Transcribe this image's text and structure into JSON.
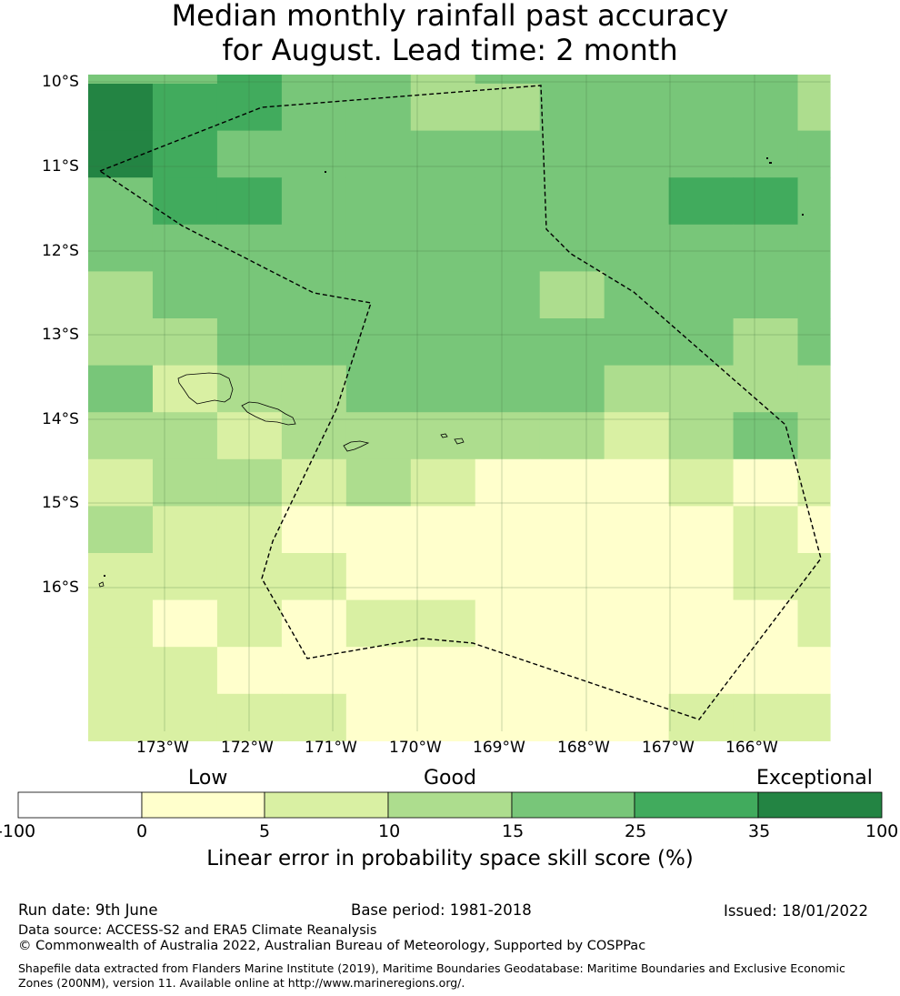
{
  "title": {
    "line1": "Median monthly rainfall past accuracy",
    "line2": "for August. Lead time: 2 month"
  },
  "map": {
    "lat_labels": [
      "10°S",
      "11°S",
      "12°S",
      "13°S",
      "14°S",
      "15°S",
      "16°S"
    ],
    "lon_labels": [
      "173°W",
      "172°W",
      "171°W",
      "170°W",
      "169°W",
      "168°W",
      "167°W",
      "166°W"
    ],
    "colors": [
      "#ffffff",
      "#ffffcc",
      "#d9f0a3",
      "#addd8e",
      "#78c679",
      "#41ab5d",
      "#238443"
    ],
    "grid": [
      [
        4,
        4,
        5,
        4,
        4,
        3,
        4,
        4,
        4,
        4,
        4,
        3
      ],
      [
        6,
        5,
        5,
        4,
        4,
        3,
        3,
        4,
        4,
        4,
        4,
        3
      ],
      [
        6,
        5,
        4,
        4,
        4,
        4,
        4,
        4,
        4,
        4,
        4,
        4
      ],
      [
        4,
        5,
        5,
        4,
        4,
        4,
        4,
        4,
        4,
        5,
        5,
        4
      ],
      [
        4,
        4,
        4,
        4,
        4,
        4,
        4,
        4,
        4,
        4,
        4,
        4
      ],
      [
        3,
        4,
        4,
        4,
        4,
        4,
        4,
        3,
        4,
        4,
        4,
        4
      ],
      [
        3,
        3,
        4,
        4,
        4,
        4,
        4,
        4,
        4,
        4,
        3,
        4
      ],
      [
        4,
        2,
        3,
        3,
        4,
        4,
        4,
        4,
        3,
        3,
        3,
        3
      ],
      [
        3,
        3,
        2,
        3,
        3,
        3,
        3,
        3,
        2,
        3,
        4,
        3
      ],
      [
        2,
        3,
        3,
        2,
        3,
        2,
        1,
        1,
        1,
        2,
        1,
        2
      ],
      [
        3,
        2,
        2,
        1,
        1,
        1,
        1,
        1,
        1,
        1,
        2,
        1
      ],
      [
        2,
        2,
        2,
        2,
        1,
        1,
        1,
        1,
        1,
        1,
        2,
        2
      ],
      [
        2,
        1,
        2,
        1,
        2,
        2,
        1,
        1,
        1,
        1,
        1,
        2
      ],
      [
        2,
        2,
        1,
        1,
        1,
        1,
        1,
        1,
        1,
        1,
        1,
        1
      ],
      [
        2,
        2,
        2,
        2,
        1,
        1,
        1,
        1,
        1,
        2,
        2,
        2
      ]
    ]
  },
  "colorbar": {
    "categories": [
      "Low",
      "Good",
      "Exceptional"
    ],
    "ticks": [
      "-100",
      "0",
      "5",
      "10",
      "15",
      "25",
      "35",
      "100"
    ],
    "label": "Linear error in probability space skill score (%)"
  },
  "footer": {
    "run_date": "Run date: 9th June",
    "base_period": "Base period: 1981-2018",
    "issued": "Issued: 18/01/2022",
    "data_source": "Data source: ACCESS-S2 and ERA5 Climate Reanalysis",
    "copyright": "© Commonwealth of Australia 2022, Australian Bureau of Meteorology, Supported by COSPPac",
    "shapefile": "Shapefile data extracted from Flanders Marine Institute (2019), Maritime Boundaries Geodatabase: Maritime Boundaries and Exclusive Economic Zones (200NM), version 11. Available online at http://www.marineregions.org/."
  }
}
